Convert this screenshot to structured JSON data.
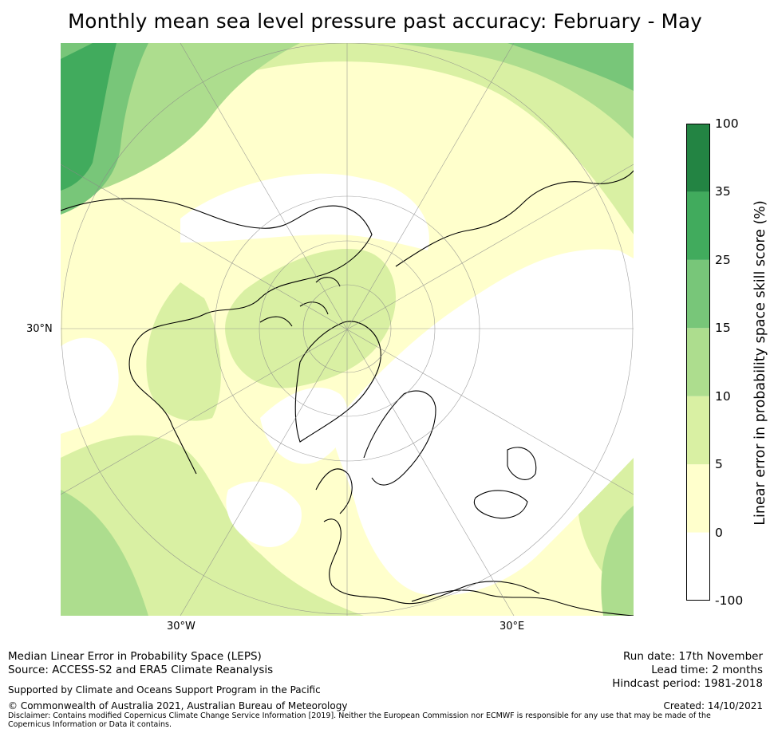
{
  "title": "Monthly mean sea level pressure past accuracy: February - May",
  "map": {
    "projection": "North polar stereographic",
    "labels": {
      "lat_30n": "30°N",
      "lon_30w": "30°W",
      "lon_30e": "30°E"
    },
    "land_regions": [
      "North America",
      "Greenland",
      "Europe",
      "Asia",
      "Africa"
    ]
  },
  "colorbar": {
    "label": "Linear error in probability space skill score (%)",
    "ticks": [
      "100",
      "35",
      "25",
      "15",
      "10",
      "5",
      "0",
      "-100"
    ],
    "bins": [
      {
        "range": "-100 to 0",
        "color": "#ffffff"
      },
      {
        "range": "0 to 5",
        "color": "#ffffcc"
      },
      {
        "range": "5 to 10",
        "color": "#d9f0a3"
      },
      {
        "range": "10 to 15",
        "color": "#addd8e"
      },
      {
        "range": "15 to 25",
        "color": "#78c679"
      },
      {
        "range": "25 to 35",
        "color": "#41ab5d"
      },
      {
        "range": "35 to 100",
        "color": "#238443"
      }
    ]
  },
  "footer": {
    "line1": "Median Linear Error in Probability Space (LEPS)",
    "line2": "Source: ACCESS-S2 and ERA5 Climate Reanalysis",
    "supported": "Supported by Climate and Oceans Support Program in the Pacific",
    "copyright": "© Commonwealth of Australia 2021, Australian Bureau of Meteorology",
    "disclaimer": "Disclaimer: Contains modified Copernicus Climate Change Service Information [2019]. Neither the European Commission nor ECMWF is responsible for any use that may be made of the Copernicus Information or Data it contains.",
    "run_date": "Run date: 17th November",
    "lead_time": "Lead time: 2 months",
    "hindcast": "Hindcast period: 1981-2018",
    "created": "Created: 14/10/2021"
  }
}
